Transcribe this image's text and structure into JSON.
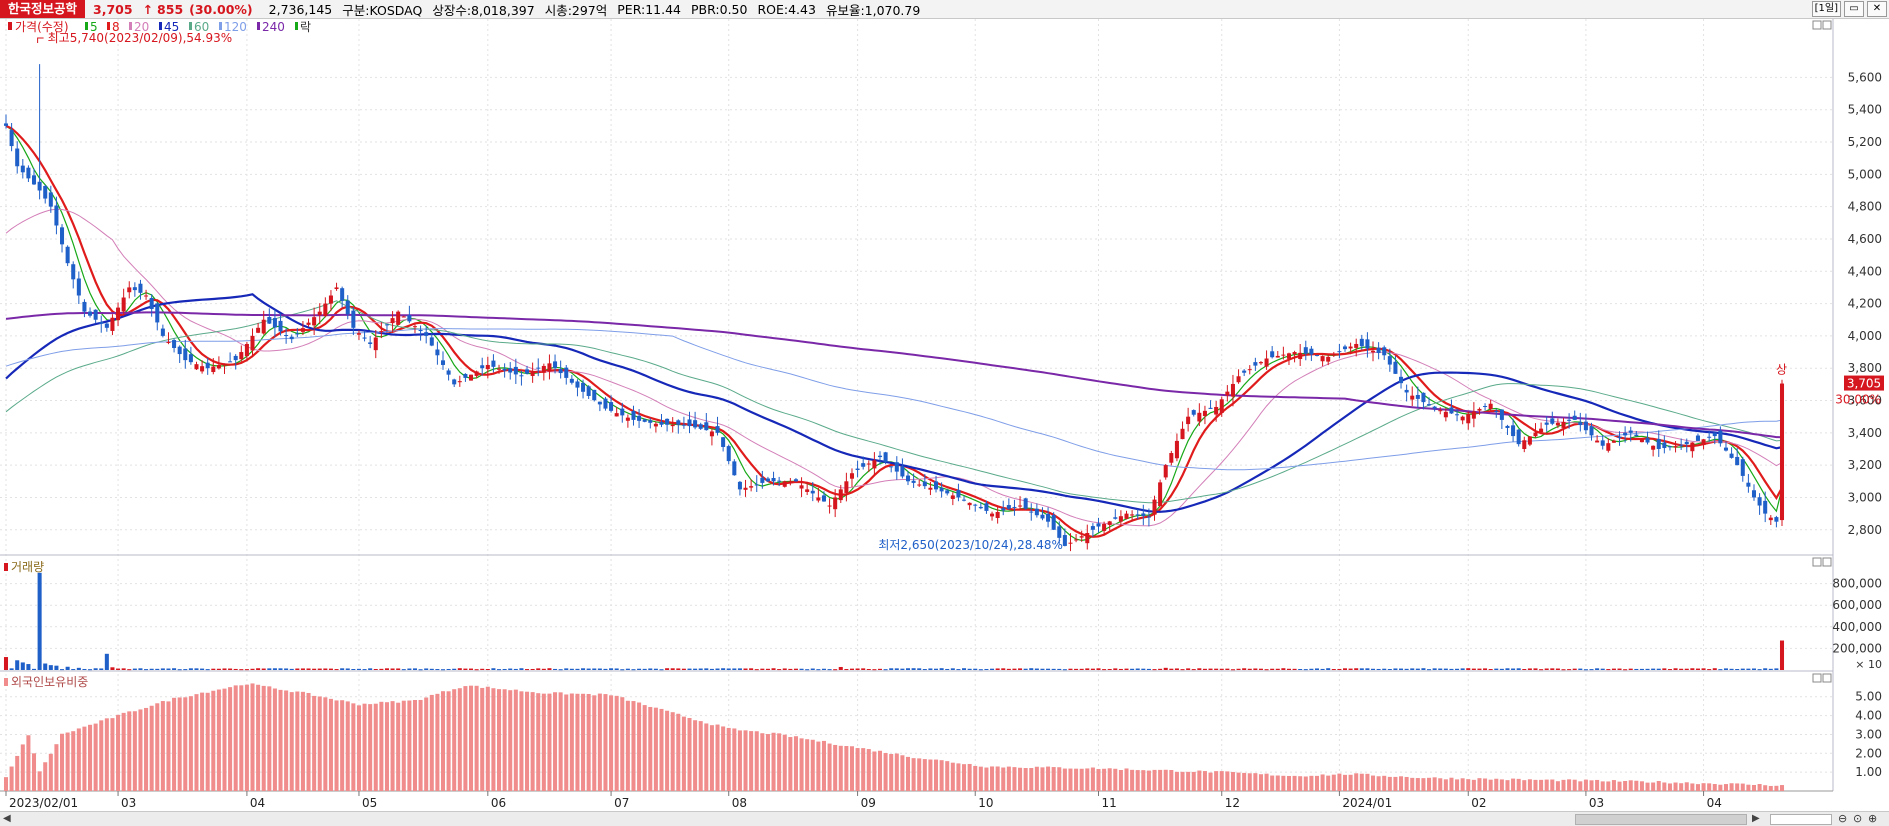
{
  "header": {
    "stock_name": "한국정보공학",
    "price": "3,705",
    "change_arrow": "↑",
    "change": "855",
    "change_pct": "(30.00%)",
    "volume": "2,736,145",
    "market": "구분:KOSDAQ",
    "shares": "상장수:8,018,397",
    "market_cap": "시총:297억",
    "per": "PER:11.44",
    "pbr": "PBR:0.50",
    "roe": "ROE:4.43",
    "float": "유보율:1,070.79",
    "period_button": "[1일]",
    "minimize_icon": "minimize-icon",
    "close_icon": "close-icon"
  },
  "colors": {
    "up": "#d6161e",
    "down": "#1f5fc8",
    "ma5": "#17a817",
    "ma8": "#e01b1b",
    "ma20": "#d37fb8",
    "ma45": "#1628b8",
    "ma60": "#5aaa8a",
    "ma120": "#7f9ee8",
    "ma240": "#7a28a8"
  },
  "legend": {
    "price_label": "가격(수정)",
    "items": [
      "5",
      "8",
      "20",
      "45",
      "60",
      "120",
      "240"
    ],
    "extra": "락"
  },
  "annotations": {
    "high": "최고5,740(2023/02/09),54.93%",
    "low": "최저2,650(2023/10/24),28.48%",
    "upper_limit": "상",
    "current_price_tag": "3,705",
    "current_pct_tag": "30.00%"
  },
  "volume_panel": {
    "title": "거래량",
    "unit": "× 10"
  },
  "foreign_panel": {
    "title": "외국인보유비중"
  },
  "chart_data": [
    {
      "type": "candlestick",
      "title": "",
      "x_ticks": [
        "2023/02/01",
        "03",
        "04",
        "05",
        "06",
        "07",
        "08",
        "09",
        "10",
        "11",
        "12",
        "2024/01",
        "02",
        "03",
        "04"
      ],
      "y_ticks": [
        "2,800",
        "3,000",
        "3,200",
        "3,400",
        "3,600",
        "3,800",
        "4,000",
        "4,200",
        "4,400",
        "4,600",
        "4,800",
        "5,000",
        "5,200",
        "5,400",
        "5,600"
      ],
      "ylim": [
        2650,
        5850
      ],
      "anchors": [
        [
          "2023-02-01",
          5300
        ],
        [
          "2023-02-03",
          5050
        ],
        [
          "2023-02-09",
          4900
        ],
        [
          "2023-02-13",
          4800
        ],
        [
          "2023-02-16",
          4450
        ],
        [
          "2023-02-21",
          4150
        ],
        [
          "2023-02-27",
          4050
        ],
        [
          "2023-03-03",
          4300
        ],
        [
          "2023-03-08",
          4250
        ],
        [
          "2023-03-13",
          4000
        ],
        [
          "2023-03-17",
          3850
        ],
        [
          "2023-03-23",
          3800
        ],
        [
          "2023-03-30",
          3850
        ],
        [
          "2023-04-06",
          4100
        ],
        [
          "2023-04-13",
          3980
        ],
        [
          "2023-04-20",
          4150
        ],
        [
          "2023-04-25",
          4300
        ],
        [
          "2023-04-28",
          4050
        ],
        [
          "2023-05-03",
          3950
        ],
        [
          "2023-05-10",
          4150
        ],
        [
          "2023-05-17",
          4000
        ],
        [
          "2023-05-24",
          3700
        ],
        [
          "2023-06-01",
          3820
        ],
        [
          "2023-06-09",
          3750
        ],
        [
          "2023-06-16",
          3830
        ],
        [
          "2023-06-23",
          3680
        ],
        [
          "2023-06-30",
          3550
        ],
        [
          "2023-07-07",
          3480
        ],
        [
          "2023-07-14",
          3450
        ],
        [
          "2023-07-20",
          3450
        ],
        [
          "2023-07-28",
          3400
        ],
        [
          "2023-08-03",
          3050
        ],
        [
          "2023-08-10",
          3100
        ],
        [
          "2023-08-17",
          3100
        ],
        [
          "2023-08-25",
          2950
        ],
        [
          "2023-08-31",
          3150
        ],
        [
          "2023-09-07",
          3250
        ],
        [
          "2023-09-14",
          3100
        ],
        [
          "2023-09-21",
          3050
        ],
        [
          "2023-09-27",
          3000
        ],
        [
          "2023-10-05",
          2900
        ],
        [
          "2023-10-12",
          2950
        ],
        [
          "2023-10-19",
          2850
        ],
        [
          "2023-10-24",
          2700
        ],
        [
          "2023-11-01",
          2820
        ],
        [
          "2023-11-08",
          2900
        ],
        [
          "2023-11-14",
          2880
        ],
        [
          "2023-11-17",
          3200
        ],
        [
          "2023-11-23",
          3500
        ],
        [
          "2023-11-30",
          3560
        ],
        [
          "2023-12-06",
          3750
        ],
        [
          "2023-12-13",
          3860
        ],
        [
          "2023-12-20",
          3900
        ],
        [
          "2023-12-28",
          3870
        ],
        [
          "2024-01-04",
          3950
        ],
        [
          "2024-01-11",
          3880
        ],
        [
          "2024-01-17",
          3650
        ],
        [
          "2024-01-24",
          3550
        ],
        [
          "2024-01-31",
          3500
        ],
        [
          "2024-02-07",
          3580
        ],
        [
          "2024-02-14",
          3330
        ],
        [
          "2024-02-21",
          3450
        ],
        [
          "2024-02-28",
          3480
        ],
        [
          "2024-03-06",
          3320
        ],
        [
          "2024-03-13",
          3400
        ],
        [
          "2024-03-20",
          3300
        ],
        [
          "2024-03-27",
          3330
        ],
        [
          "2024-04-03",
          3380
        ],
        [
          "2024-04-09",
          3200
        ],
        [
          "2024-04-12",
          3000
        ],
        [
          "2024-04-16",
          2900
        ],
        [
          "2024-04-18",
          2850
        ],
        [
          "2024-04-19",
          3705
        ]
      ],
      "moving_averages": [
        5,
        8,
        20,
        45,
        60,
        120,
        240
      ]
    },
    {
      "type": "bar",
      "title": "거래량",
      "y_ticks": [
        "200,000",
        "400,000",
        "600,000",
        "800,000"
      ],
      "ylim": [
        0,
        1000000
      ],
      "spikes": [
        [
          "2023-02-01",
          120000
        ],
        [
          "2023-02-03",
          90000
        ],
        [
          "2023-02-06",
          70000
        ],
        [
          "2023-02-07",
          55000
        ],
        [
          "2023-02-09",
          900000
        ],
        [
          "2023-02-10",
          60000
        ],
        [
          "2023-02-13",
          45000
        ],
        [
          "2023-02-14",
          40000
        ],
        [
          "2023-02-16",
          30000
        ],
        [
          "2023-02-20",
          20000
        ],
        [
          "2023-02-27",
          150000
        ],
        [
          "2023-02-28",
          25000
        ],
        [
          "2023-08-29",
          28000
        ],
        [
          "2023-11-17",
          20000
        ],
        [
          "2024-04-19",
          273000
        ]
      ],
      "base_volume": 12000
    },
    {
      "type": "bar",
      "title": "외국인보유비중",
      "y_ticks": [
        "1.00",
        "2.00",
        "3.00",
        "4.00",
        "5.00"
      ],
      "ylim": [
        0,
        6.1
      ],
      "anchors": [
        [
          "2023-02-01",
          0.7
        ],
        [
          "2023-02-07",
          3.0
        ],
        [
          "2023-02-09",
          1.0
        ],
        [
          "2023-02-15",
          3.0
        ],
        [
          "2023-03-01",
          4.0
        ],
        [
          "2023-03-15",
          4.9
        ],
        [
          "2023-04-03",
          5.7
        ],
        [
          "2023-04-17",
          5.2
        ],
        [
          "2023-05-01",
          4.6
        ],
        [
          "2023-05-15",
          4.8
        ],
        [
          "2023-05-26",
          5.6
        ],
        [
          "2023-06-15",
          5.2
        ],
        [
          "2023-07-03",
          5.1
        ],
        [
          "2023-07-14",
          4.3
        ],
        [
          "2023-08-01",
          3.3
        ],
        [
          "2023-08-14",
          3.0
        ],
        [
          "2023-09-01",
          2.3
        ],
        [
          "2023-09-15",
          1.8
        ],
        [
          "2023-10-04",
          1.3
        ],
        [
          "2023-11-01",
          1.2
        ],
        [
          "2023-12-01",
          1.0
        ],
        [
          "2023-12-20",
          0.8
        ],
        [
          "2024-01-03",
          0.9
        ],
        [
          "2024-01-20",
          0.7
        ],
        [
          "2024-02-15",
          0.6
        ],
        [
          "2024-03-15",
          0.5
        ],
        [
          "2024-04-19",
          0.3
        ]
      ]
    }
  ]
}
